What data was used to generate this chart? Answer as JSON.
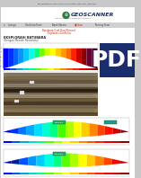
{
  "bg_color": "#c8c8c8",
  "page_bg": "#ffffff",
  "header_bg": "#ffffff",
  "nav_bar_color": "#d4d4d4",
  "title_text": "EKSPLORASI BATUBARA",
  "subtitle_text": "(Dengan Metode Resistivity)",
  "logo_text_geo": "GEO",
  "logo_text_scanner": "SCANNER",
  "nav_items": [
    "Lainnya",
    "Geofisika Form",
    "Bank Skema",
    "Aplikasi",
    "Training Form"
  ],
  "link1": "Batubara Coal Dan Mineral",
  "link2": "Explorasi Geofisika",
  "pdf_text": "PDF",
  "pdf_bg": "#1a2e6e",
  "chart1_colors": [
    "#0000ff",
    "#0033ff",
    "#0066ff",
    "#0099ff",
    "#00ccff",
    "#00ffee",
    "#00ff88",
    "#66ff00",
    "#ccff00",
    "#ffff00",
    "#ffcc00",
    "#ff9900",
    "#ff6600",
    "#ff2200",
    "#cc0000",
    "#880000",
    "#660033",
    "#440033"
  ],
  "chart2_colors": [
    "#0000cc",
    "#0033ff",
    "#0077ff",
    "#00aaff",
    "#00ddff",
    "#00ffcc",
    "#00ff88",
    "#44ff00",
    "#aaff00",
    "#ffff00",
    "#ffcc00",
    "#ff8800",
    "#ff4400",
    "#ff1100",
    "#cc0000",
    "#880022"
  ],
  "chart3_colors": [
    "#0000aa",
    "#002299",
    "#0055ff",
    "#0099ff",
    "#00ccff",
    "#00ffdd",
    "#00ff88",
    "#55ff00",
    "#aaff00",
    "#ffff00",
    "#ffcc00",
    "#ff8800",
    "#ff4400",
    "#ff0000",
    "#cc0000"
  ],
  "colorbar_colors": [
    "#0000ff",
    "#0055ee",
    "#00aadd",
    "#00ddcc",
    "#00ff88",
    "#55ff00",
    "#aaff00",
    "#ffff00",
    "#ffcc00",
    "#ff8800",
    "#ff5500",
    "#ff2200",
    "#ee0000",
    "#cc0000",
    "#880000"
  ],
  "soil_colors_1": [
    "#8b7355",
    "#7a6448",
    "#6b5538",
    "#5c4730",
    "#6e5a3a",
    "#8a7248",
    "#9a8050",
    "#7a6040",
    "#6a5030"
  ],
  "soil_colors_2": [
    "#7a6448",
    "#6b5538",
    "#8a7248",
    "#9a8050",
    "#6e5a3a",
    "#7a6040",
    "#8b7355",
    "#5c4730",
    "#6a5030"
  ],
  "photo_stripe_colors": [
    "#5a4832",
    "#7a6445",
    "#6a5438",
    "#4a3a28",
    "#8a7255",
    "#9a8460",
    "#6a5840",
    "#504030",
    "#3a2e1e"
  ],
  "white": "#ffffff",
  "light_gray": "#f0f0f0",
  "green_box": "#22aa66",
  "teal_box": "#229988"
}
